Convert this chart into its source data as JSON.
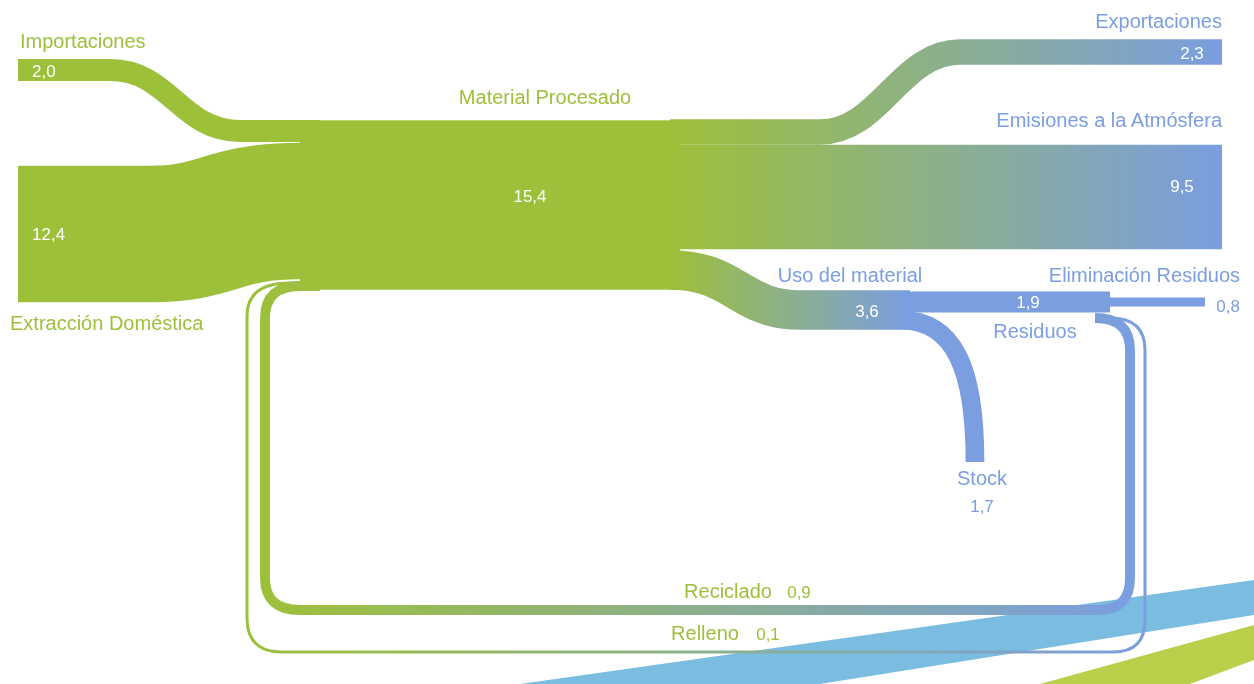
{
  "chart_data": {
    "type": "other",
    "categories": [
      "Importaciones",
      "Extracción Doméstica",
      "Material Procesado",
      "Exportaciones",
      "Emisiones a la Atmósfera",
      "Uso del material",
      "Stock",
      "Residuos",
      "Eliminación Residuos",
      "Reciclado",
      "Relleno"
    ],
    "values": [
      2.0,
      12.4,
      15.4,
      2.3,
      9.5,
      3.6,
      1.7,
      1.9,
      0.8,
      0.9,
      0.1
    ],
    "value_labels": [
      "2,0",
      "12,4",
      "15,4",
      "2,3",
      "9,5",
      "3,6",
      "1,7",
      "1,9",
      "0,8",
      "0,9",
      "0,1"
    ],
    "colors": [
      "#9dc03a",
      "#9dc03a",
      "#9dc03a",
      "#7a9ee0",
      "#7a9ee0",
      "#7a9ee0",
      "#7a9ee0",
      "#7a9ee0",
      "#7a9ee0",
      "#9dc03a",
      "#9dc03a"
    ]
  }
}
